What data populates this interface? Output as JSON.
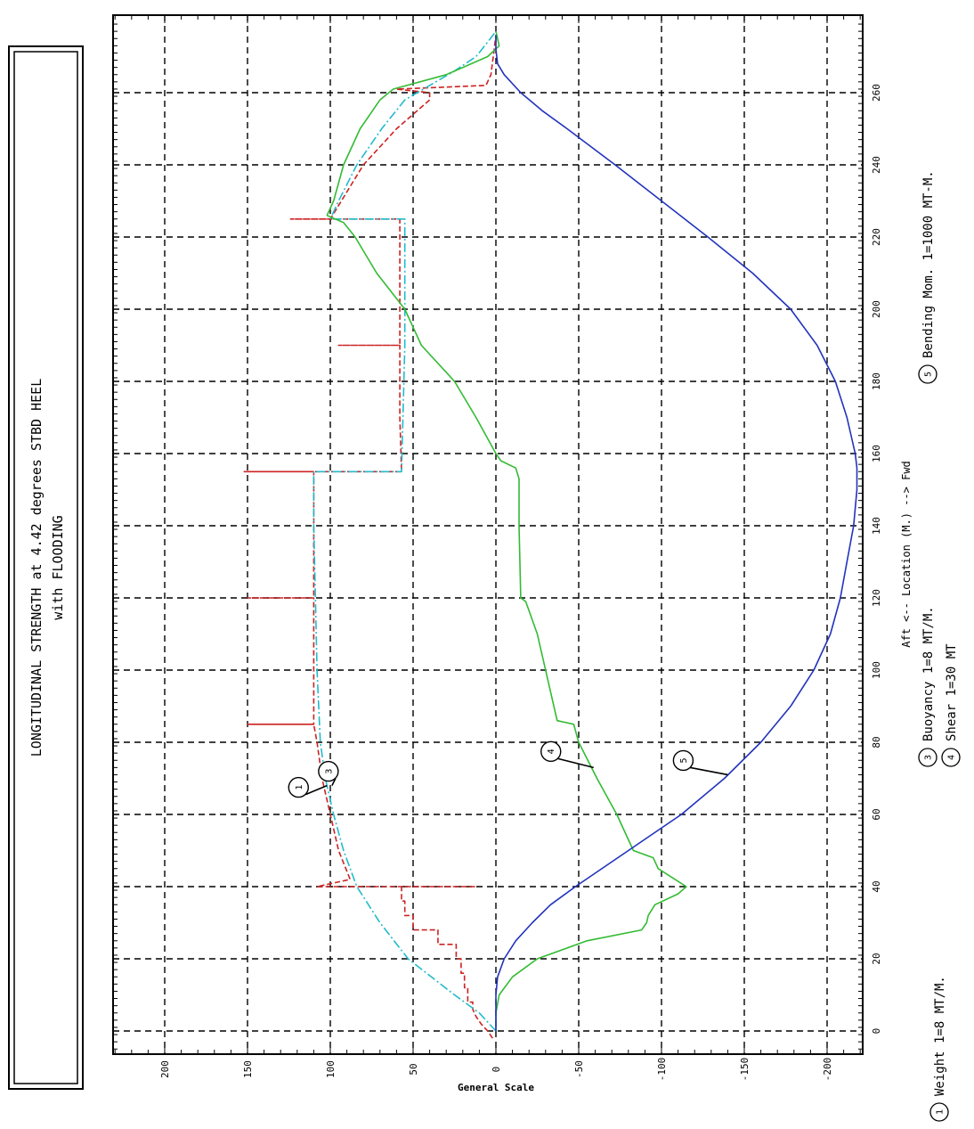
{
  "title_box": {
    "line1": "LONGITUDINAL STRENGTH at 4.42 degrees STBD HEEL",
    "line2": "with FLOODING"
  },
  "colors": {
    "weight": "#cc2222",
    "buoyancy": "#22bbcc",
    "shear": "#33bb33",
    "bending": "#2233bb",
    "grid": "#000000"
  },
  "chart_data": {
    "type": "line",
    "orientation": "rotated-90-ccw",
    "xlabel": "Aft <-- Location (M.) --> Fwd",
    "ylabel": "General Scale",
    "xlim": [
      -5,
      280
    ],
    "ylim": [
      -235,
      235
    ],
    "x_ticks": [
      0,
      20,
      40,
      60,
      80,
      100,
      120,
      140,
      160,
      180,
      200,
      220,
      240,
      260
    ],
    "y_ticks": [
      200,
      150,
      100,
      50,
      0,
      -50,
      -100,
      -150,
      -200
    ],
    "grid": true,
    "series": [
      {
        "id": "1",
        "name": "Weight 1=8 MT/M.",
        "style": "dashed",
        "color_key": "weight",
        "points": [
          [
            -2,
            2
          ],
          [
            0,
            5
          ],
          [
            2,
            9
          ],
          [
            4,
            12
          ],
          [
            6,
            14
          ],
          [
            8,
            14
          ],
          [
            8,
            17
          ],
          [
            12,
            17
          ],
          [
            12,
            19
          ],
          [
            16,
            19
          ],
          [
            16,
            21
          ],
          [
            20,
            21
          ],
          [
            20,
            24
          ],
          [
            24,
            24
          ],
          [
            24,
            35
          ],
          [
            28,
            35
          ],
          [
            28,
            50
          ],
          [
            32,
            50
          ],
          [
            32,
            55
          ],
          [
            36,
            55
          ],
          [
            36,
            57
          ],
          [
            40,
            57
          ],
          [
            40,
            12
          ],
          [
            40,
            108
          ],
          [
            42,
            88
          ],
          [
            50,
            95
          ],
          [
            60,
            100
          ],
          [
            70,
            105
          ],
          [
            80,
            108
          ],
          [
            85,
            110
          ],
          [
            85,
            150
          ],
          [
            85,
            110
          ],
          [
            100,
            110
          ],
          [
            120,
            110
          ],
          [
            120,
            150
          ],
          [
            120,
            110
          ],
          [
            140,
            110
          ],
          [
            155,
            110
          ],
          [
            155,
            152
          ],
          [
            155,
            57
          ],
          [
            170,
            58
          ],
          [
            190,
            58
          ],
          [
            190,
            95
          ],
          [
            190,
            58
          ],
          [
            220,
            58
          ],
          [
            225,
            58
          ],
          [
            225,
            124
          ],
          [
            225,
            100
          ],
          [
            240,
            80
          ],
          [
            250,
            60
          ],
          [
            258,
            40
          ],
          [
            260,
            40
          ],
          [
            261,
            60
          ],
          [
            262,
            6
          ],
          [
            265,
            3
          ],
          [
            272,
            1
          ],
          [
            276,
            0
          ]
        ]
      },
      {
        "id": "3",
        "name": "Buoyancy 1=8 MT/M.",
        "style": "dash-dot",
        "color_key": "buoyancy",
        "points": [
          [
            0,
            0
          ],
          [
            5,
            10
          ],
          [
            10,
            25
          ],
          [
            20,
            53
          ],
          [
            30,
            70
          ],
          [
            40,
            84
          ],
          [
            50,
            92
          ],
          [
            60,
            98
          ],
          [
            70,
            103
          ],
          [
            80,
            106
          ],
          [
            100,
            108
          ],
          [
            120,
            109
          ],
          [
            140,
            110
          ],
          [
            155,
            110
          ],
          [
            155,
            57
          ],
          [
            190,
            55
          ],
          [
            225,
            55
          ],
          [
            225,
            100
          ],
          [
            230,
            95
          ],
          [
            240,
            84
          ],
          [
            250,
            69
          ],
          [
            258,
            55
          ],
          [
            262,
            40
          ],
          [
            266,
            25
          ],
          [
            270,
            12
          ],
          [
            274,
            5
          ],
          [
            277,
            0
          ]
        ]
      },
      {
        "id": "4",
        "name": "Shear 1=30 MT",
        "style": "solid",
        "color_key": "shear",
        "points": [
          [
            0,
            0
          ],
          [
            5,
            0
          ],
          [
            10,
            -2
          ],
          [
            15,
            -10
          ],
          [
            20,
            -25
          ],
          [
            25,
            -55
          ],
          [
            28,
            -88
          ],
          [
            30,
            -91
          ],
          [
            32,
            -92
          ],
          [
            35,
            -96
          ],
          [
            38,
            -110
          ],
          [
            40,
            -115
          ],
          [
            45,
            -98
          ],
          [
            48,
            -95
          ],
          [
            50,
            -83
          ],
          [
            60,
            -73
          ],
          [
            70,
            -61
          ],
          [
            80,
            -50
          ],
          [
            85,
            -47
          ],
          [
            86,
            -37
          ],
          [
            100,
            -30
          ],
          [
            110,
            -25
          ],
          [
            119,
            -18
          ],
          [
            120,
            -15
          ],
          [
            140,
            -14
          ],
          [
            153,
            -14
          ],
          [
            156,
            -12
          ],
          [
            158,
            -3
          ],
          [
            160,
            0
          ],
          [
            170,
            12
          ],
          [
            180,
            25
          ],
          [
            190,
            45
          ],
          [
            200,
            55
          ],
          [
            210,
            72
          ],
          [
            220,
            85
          ],
          [
            224,
            92
          ],
          [
            226,
            102
          ],
          [
            230,
            98
          ],
          [
            240,
            92
          ],
          [
            250,
            82
          ],
          [
            258,
            70
          ],
          [
            261,
            62
          ],
          [
            265,
            30
          ],
          [
            270,
            5
          ],
          [
            273,
            -2
          ],
          [
            275,
            -1
          ],
          [
            277,
            0
          ]
        ]
      },
      {
        "id": "5",
        "name": "Bending Mom. 1=1000 MT-M.",
        "style": "solid",
        "color_key": "bending",
        "points": [
          [
            0,
            0
          ],
          [
            10,
            0
          ],
          [
            15,
            -1
          ],
          [
            20,
            -5
          ],
          [
            25,
            -12
          ],
          [
            30,
            -22
          ],
          [
            35,
            -33
          ],
          [
            40,
            -48
          ],
          [
            50,
            -80
          ],
          [
            60,
            -112
          ],
          [
            70,
            -138
          ],
          [
            80,
            -160
          ],
          [
            90,
            -178
          ],
          [
            100,
            -192
          ],
          [
            110,
            -202
          ],
          [
            120,
            -208
          ],
          [
            130,
            -212
          ],
          [
            140,
            -216
          ],
          [
            150,
            -218
          ],
          [
            156,
            -218
          ],
          [
            160,
            -217
          ],
          [
            170,
            -212
          ],
          [
            180,
            -205
          ],
          [
            190,
            -194
          ],
          [
            200,
            -178
          ],
          [
            210,
            -155
          ],
          [
            220,
            -128
          ],
          [
            230,
            -100
          ],
          [
            240,
            -72
          ],
          [
            250,
            -43
          ],
          [
            255,
            -28
          ],
          [
            260,
            -15
          ],
          [
            265,
            -5
          ],
          [
            268,
            -1
          ],
          [
            272,
            0
          ],
          [
            276,
            0
          ]
        ]
      }
    ],
    "annotations": [
      {
        "label": "1",
        "series": "1",
        "x": 68,
        "y": 102
      },
      {
        "label": "3",
        "series": "3",
        "x": 68,
        "y": 99
      },
      {
        "label": "4",
        "series": "4",
        "x": 73,
        "y": -59
      },
      {
        "label": "5",
        "series": "5",
        "x": 71,
        "y": -140
      }
    ]
  }
}
